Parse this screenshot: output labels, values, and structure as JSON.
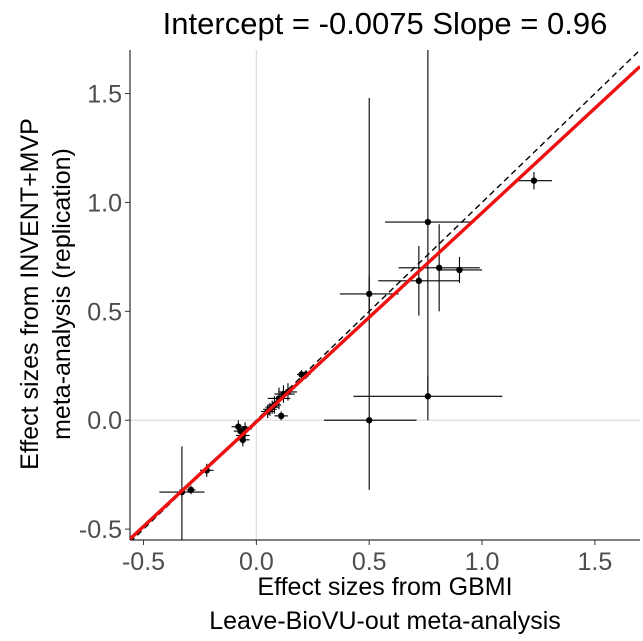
{
  "chart_data": {
    "type": "scatter",
    "title": "Intercept = -0.0075  Slope = 0.96",
    "xlabel": [
      "Effect sizes from GBMI",
      "Leave-BioVU-out meta-analysis"
    ],
    "ylabel": [
      "Effect sizes from INVENT+MVP",
      "meta-analysis (replication)"
    ],
    "xlim": [
      -0.56,
      1.7
    ],
    "ylim": [
      -0.55,
      1.7
    ],
    "x_ticks": [
      -0.5,
      0,
      0.5,
      1,
      1.5
    ],
    "x_tick_labels": [
      "-0.5",
      "0.0",
      "0.5",
      "1.0",
      "1.5"
    ],
    "y_ticks": [
      -0.5,
      0,
      0.5,
      1,
      1.5
    ],
    "y_tick_labels": [
      "-0.5",
      "0.0",
      "0.5",
      "1.0",
      "1.5"
    ],
    "grid": false,
    "reference_lines": {
      "x_zero": true,
      "y_zero": true
    },
    "identity_line": {
      "slope": 1,
      "intercept": 0,
      "style": "dashed",
      "color": "#000000"
    },
    "fit_line": {
      "slope": 0.96,
      "intercept": -0.0075,
      "color": "#ee1111"
    },
    "points": [
      {
        "x": 1.23,
        "y": 1.1,
        "xlo": 1.15,
        "xhi": 1.31,
        "ylo": 1.06,
        "yhi": 1.14
      },
      {
        "x": 0.76,
        "y": 0.91,
        "xlo": 0.57,
        "xhi": 0.95,
        "ylo": 0.12,
        "yhi": 1.7
      },
      {
        "x": 0.81,
        "y": 0.7,
        "xlo": 0.63,
        "xhi": 0.99,
        "ylo": 0.5,
        "yhi": 0.9
      },
      {
        "x": 0.72,
        "y": 0.64,
        "xlo": 0.54,
        "xhi": 0.9,
        "ylo": 0.48,
        "yhi": 0.8
      },
      {
        "x": 0.9,
        "y": 0.69,
        "xlo": 0.8,
        "xhi": 1.0,
        "ylo": 0.63,
        "yhi": 0.75
      },
      {
        "x": 0.5,
        "y": 0.58,
        "xlo": 0.37,
        "xhi": 0.63,
        "ylo": 0.5,
        "yhi": 0.66
      },
      {
        "x": 0.76,
        "y": 0.11,
        "xlo": 0.43,
        "xhi": 1.09,
        "ylo": 0.0,
        "yhi": 0.2
      },
      {
        "x": 0.5,
        "y": 0.0,
        "xlo": 0.3,
        "xhi": 0.71,
        "ylo": -0.32,
        "yhi": 1.48
      },
      {
        "x": 0.2,
        "y": 0.21,
        "xlo": 0.18,
        "xhi": 0.22,
        "ylo": 0.19,
        "yhi": 0.23
      },
      {
        "x": 0.22,
        "y": 0.21,
        "xlo": 0.2,
        "xhi": 0.24,
        "ylo": 0.19,
        "yhi": 0.23
      },
      {
        "x": 0.12,
        "y": 0.12,
        "xlo": 0.08,
        "xhi": 0.17,
        "ylo": 0.08,
        "yhi": 0.16
      },
      {
        "x": 0.1,
        "y": 0.1,
        "xlo": 0.05,
        "xhi": 0.15,
        "ylo": 0.05,
        "yhi": 0.15
      },
      {
        "x": 0.14,
        "y": 0.13,
        "xlo": 0.1,
        "xhi": 0.18,
        "ylo": 0.09,
        "yhi": 0.17
      },
      {
        "x": 0.08,
        "y": 0.07,
        "xlo": 0.05,
        "xhi": 0.11,
        "ylo": 0.03,
        "yhi": 0.11
      },
      {
        "x": 0.11,
        "y": 0.02,
        "xlo": 0.08,
        "xhi": 0.14,
        "ylo": 0.0,
        "yhi": 0.04
      },
      {
        "x": 0.06,
        "y": 0.05,
        "xlo": 0.03,
        "xhi": 0.09,
        "ylo": 0.02,
        "yhi": 0.08
      },
      {
        "x": 0.05,
        "y": 0.04,
        "xlo": 0.02,
        "xhi": 0.08,
        "ylo": 0.01,
        "yhi": 0.07
      },
      {
        "x": 0.07,
        "y": 0.06,
        "xlo": 0.04,
        "xhi": 0.1,
        "ylo": 0.03,
        "yhi": 0.09
      },
      {
        "x": -0.07,
        "y": -0.05,
        "xlo": -0.1,
        "xhi": -0.04,
        "ylo": -0.08,
        "yhi": -0.02
      },
      {
        "x": -0.06,
        "y": -0.07,
        "xlo": -0.09,
        "xhi": -0.03,
        "ylo": -0.11,
        "yhi": -0.03
      },
      {
        "x": -0.05,
        "y": -0.04,
        "xlo": -0.08,
        "xhi": -0.02,
        "ylo": -0.07,
        "yhi": -0.01
      },
      {
        "x": -0.08,
        "y": -0.03,
        "xlo": -0.11,
        "xhi": -0.05,
        "ylo": -0.06,
        "yhi": 0.0
      },
      {
        "x": -0.06,
        "y": -0.09,
        "xlo": -0.09,
        "xhi": -0.03,
        "ylo": -0.12,
        "yhi": -0.06
      },
      {
        "x": -0.22,
        "y": -0.23,
        "xlo": -0.25,
        "xhi": -0.19,
        "ylo": -0.26,
        "yhi": -0.2
      },
      {
        "x": -0.29,
        "y": -0.32,
        "xlo": -0.31,
        "xhi": -0.27,
        "ylo": -0.34,
        "yhi": -0.3
      },
      {
        "x": -0.33,
        "y": -0.33,
        "xlo": -0.43,
        "xhi": -0.23,
        "ylo": -0.55,
        "yhi": -0.12
      }
    ]
  }
}
